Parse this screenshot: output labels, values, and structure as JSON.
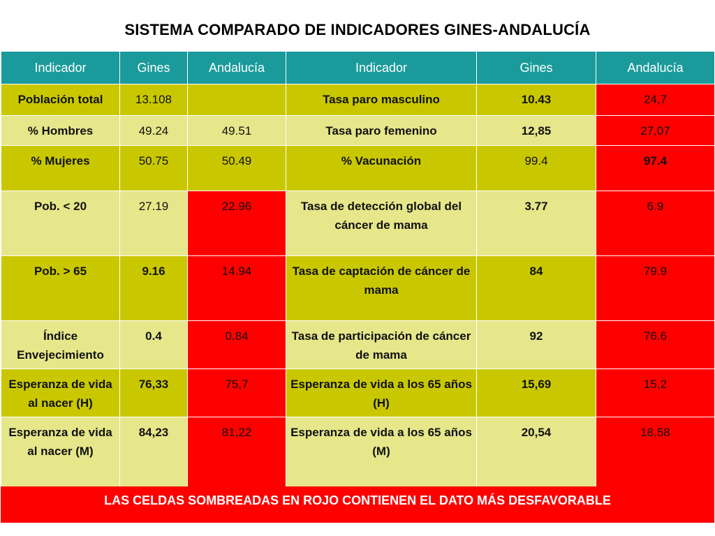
{
  "title": "SISTEMA COMPARADO DE INDICADORES GINES-ANDALUCÍA",
  "headers": [
    "Indicador",
    "Gines",
    "Andalucía",
    "Indicador",
    "Gines",
    "Andalucía"
  ],
  "rows": [
    {
      "ind1": "Población total",
      "g1": "13.108",
      "a1": "",
      "ind2": "Tasa paro masculino",
      "g2": "10.43",
      "a2": "24,7"
    },
    {
      "ind1": "% Hombres",
      "g1": "49.24",
      "a1": "49.51",
      "ind2": "Tasa paro femenino",
      "g2": "12,85",
      "a2": "27,07"
    },
    {
      "ind1": "% Mujeres",
      "g1": "50.75",
      "a1": "50.49",
      "ind2": "% Vacunación",
      "g2": "99.4",
      "a2": "97.4"
    },
    {
      "ind1": "Pob. < 20",
      "g1": "27.19",
      "a1": "22.96",
      "ind2": "Tasa de detección global del cáncer de mama",
      "g2": "3.77",
      "a2": "6.9"
    },
    {
      "ind1": "Pob. > 65",
      "g1": "9.16",
      "a1": "14.94",
      "ind2": "Tasa de captación de cáncer de mama",
      "g2": "84",
      "a2": "79.9"
    },
    {
      "ind1": "Índice Envejecimiento",
      "g1": "0.4",
      "a1": "0.84",
      "ind2": "Tasa de participación de cáncer de mama",
      "g2": "92",
      "a2": "76.6"
    },
    {
      "ind1": "Esperanza de vida al nacer (H)",
      "g1": "76,33",
      "a1": "75,7",
      "ind2": "Esperanza de vida a los 65 años (H)",
      "g2": "15,69",
      "a2": "15,2"
    },
    {
      "ind1": "Esperanza de vida al nacer (M)",
      "g1": "84,23",
      "a1": "81,22",
      "ind2": "Esperanza de vida a los 65 años (M)",
      "g2": "20,54",
      "a2": "18,58"
    }
  ],
  "footer": "LAS CELDAS SOMBREADAS EN ROJO CONTIENEN EL DATO MÁS DESFAVORABLE",
  "colors": {
    "header": "#1a9a9a",
    "olive_dark": "#c9c800",
    "olive_light": "#e6e68a",
    "red": "#ff0000"
  }
}
